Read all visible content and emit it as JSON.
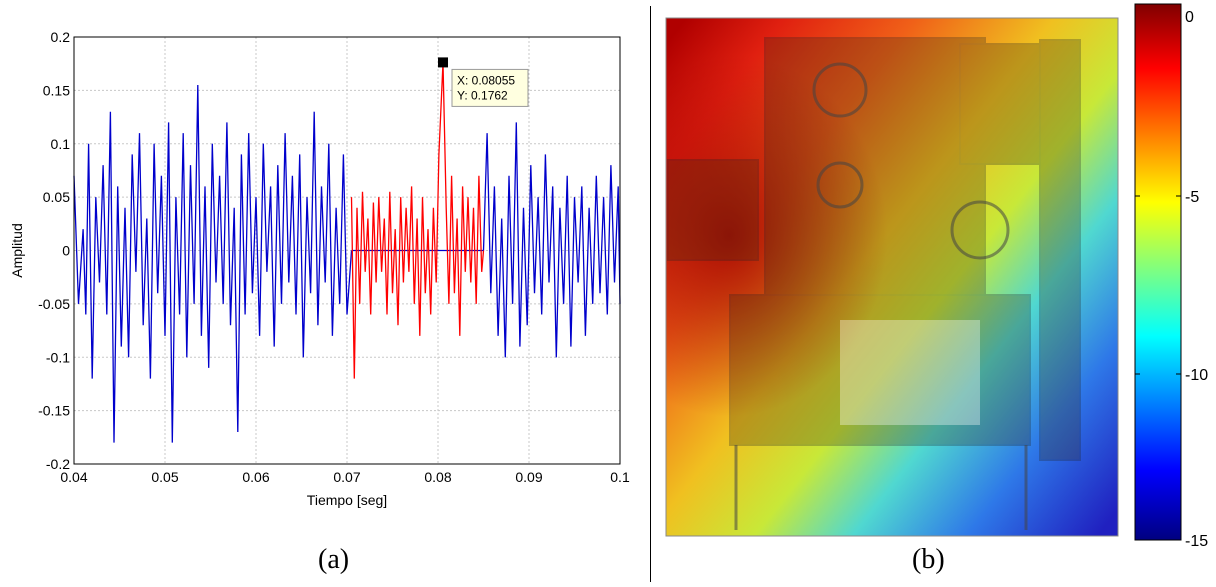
{
  "captions": {
    "a": "(a)",
    "b": "(b)"
  },
  "colors": {
    "signal": "#0000cc",
    "segment": "#ff0000",
    "grid": "#c8c8c8",
    "marker": "#000000",
    "tooltip_bg": "#ffffe0"
  },
  "chart_data": [
    {
      "type": "line",
      "title": "",
      "xlabel": "Tiempo [seg]",
      "ylabel": "Amplitud",
      "xlim": [
        0.04,
        0.1
      ],
      "ylim": [
        -0.2,
        0.2
      ],
      "xticks": [
        "0.04",
        "0.05",
        "0.06",
        "0.07",
        "0.08",
        "0.09",
        "0.1"
      ],
      "yticks": [
        "0.2",
        "0.15",
        "0.1",
        "0.05",
        "0",
        "-0.05",
        "-0.1",
        "-0.15",
        "-0.2"
      ],
      "grid": true,
      "series": [
        {
          "color": "blue",
          "x": [
            0.04,
            0.0405,
            0.041,
            0.0413,
            0.0416,
            0.042,
            0.0424,
            0.0428,
            0.0432,
            0.0436,
            0.044,
            0.0444,
            0.0448,
            0.0452,
            0.0456,
            0.046,
            0.0464,
            0.0468,
            0.0472,
            0.0476,
            0.048,
            0.0484,
            0.0488,
            0.0492,
            0.0496,
            0.05,
            0.0504,
            0.0508,
            0.0512,
            0.0516,
            0.052,
            0.0524,
            0.0528,
            0.0532,
            0.0536,
            0.054,
            0.0544,
            0.0548,
            0.0552,
            0.0556,
            0.056,
            0.0564,
            0.0568,
            0.0572,
            0.0576,
            0.058,
            0.0584,
            0.0588,
            0.0592,
            0.0596,
            0.06,
            0.0604,
            0.0608,
            0.0612,
            0.0616,
            0.062,
            0.0624,
            0.0628,
            0.0632,
            0.0636,
            0.064,
            0.0644,
            0.0648,
            0.0652,
            0.0656,
            0.066,
            0.0664,
            0.0668,
            0.0672,
            0.0676,
            0.068,
            0.0684,
            0.0688,
            0.0692,
            0.0696,
            0.07,
            0.0705
          ],
          "y": [
            0.07,
            -0.05,
            0.02,
            -0.06,
            0.1,
            -0.12,
            0.05,
            -0.03,
            0.08,
            -0.06,
            0.13,
            -0.18,
            0.06,
            -0.09,
            0.04,
            -0.1,
            0.09,
            -0.02,
            0.11,
            -0.07,
            0.03,
            -0.12,
            0.1,
            -0.04,
            0.07,
            -0.08,
            0.12,
            -0.18,
            0.05,
            -0.06,
            0.11,
            -0.1,
            0.08,
            -0.05,
            0.155,
            -0.08,
            0.06,
            -0.11,
            0.1,
            -0.03,
            0.07,
            -0.05,
            0.12,
            -0.07,
            0.04,
            -0.17,
            0.09,
            -0.06,
            0.11,
            -0.04,
            0.05,
            -0.08,
            0.1,
            -0.02,
            0.06,
            -0.09,
            0.08,
            -0.05,
            0.11,
            -0.03,
            0.07,
            -0.06,
            0.09,
            -0.1,
            0.05,
            -0.04,
            0.13,
            -0.07,
            0.06,
            -0.03,
            0.1,
            -0.08,
            0.04,
            -0.05,
            0.09,
            -0.06,
            0.0
          ]
        },
        {
          "color": "blue",
          "x": [
            0.0705,
            0.085
          ],
          "y": [
            0,
            0
          ]
        },
        {
          "color": "red",
          "x": [
            0.0705,
            0.0708,
            0.0711,
            0.0714,
            0.0717,
            0.072,
            0.0723,
            0.0726,
            0.0729,
            0.0732,
            0.0735,
            0.0738,
            0.0741,
            0.0744,
            0.0747,
            0.075,
            0.0753,
            0.0756,
            0.0759,
            0.0762,
            0.0765,
            0.0768,
            0.0771,
            0.0774,
            0.0777,
            0.078,
            0.0783,
            0.0786,
            0.0789,
            0.0792,
            0.0795,
            0.0798,
            0.0801,
            0.08055,
            0.0809,
            0.0812,
            0.0815,
            0.0818,
            0.0821,
            0.0824,
            0.0827,
            0.083,
            0.0833,
            0.0836,
            0.0839,
            0.0842,
            0.0845,
            0.0848,
            0.085
          ],
          "y": [
            0.05,
            -0.12,
            0.04,
            -0.05,
            0.055,
            -0.02,
            0.03,
            -0.06,
            0.045,
            -0.03,
            0.05,
            -0.02,
            0.03,
            -0.06,
            0.055,
            -0.04,
            0.02,
            -0.07,
            0.05,
            -0.03,
            0.04,
            -0.02,
            0.06,
            -0.05,
            0.03,
            -0.08,
            0.05,
            -0.04,
            0.02,
            -0.06,
            0.04,
            -0.03,
            0.09,
            0.1762,
            0.04,
            -0.05,
            0.07,
            -0.04,
            0.03,
            -0.08,
            0.06,
            -0.02,
            0.05,
            -0.03,
            0.04,
            -0.05,
            0.07,
            -0.02,
            0.0
          ]
        },
        {
          "color": "blue",
          "x": [
            0.085,
            0.0854,
            0.0858,
            0.0862,
            0.0866,
            0.087,
            0.0874,
            0.0878,
            0.0882,
            0.0886,
            0.089,
            0.0894,
            0.0898,
            0.0902,
            0.0906,
            0.091,
            0.0914,
            0.0918,
            0.0922,
            0.0926,
            0.093,
            0.0934,
            0.0938,
            0.0942,
            0.0946,
            0.095,
            0.0954,
            0.0958,
            0.0962,
            0.0966,
            0.097,
            0.0974,
            0.0978,
            0.0982,
            0.0986,
            0.099,
            0.0994,
            0.0998,
            0.1
          ],
          "y": [
            0.0,
            0.11,
            -0.04,
            0.06,
            -0.08,
            0.03,
            -0.1,
            0.07,
            -0.05,
            0.12,
            -0.09,
            0.04,
            -0.07,
            0.08,
            -0.04,
            0.05,
            -0.06,
            0.09,
            -0.03,
            0.06,
            -0.1,
            0.04,
            -0.05,
            0.07,
            -0.09,
            0.05,
            -0.03,
            0.06,
            -0.08,
            0.04,
            -0.05,
            0.07,
            -0.04,
            0.05,
            -0.06,
            0.08,
            -0.03,
            0.06,
            -0.05
          ]
        }
      ],
      "datatip": {
        "x_value": 0.08055,
        "y_value": 0.1762,
        "x_text": "X: 0.08055",
        "y_text": "Y: 0.1762"
      }
    },
    {
      "type": "heatmap",
      "colorbar_ticks": [
        "0",
        "-5",
        "-10",
        "-15"
      ],
      "colorbar_range": [
        -15,
        0
      ],
      "colormap": "jet"
    }
  ]
}
